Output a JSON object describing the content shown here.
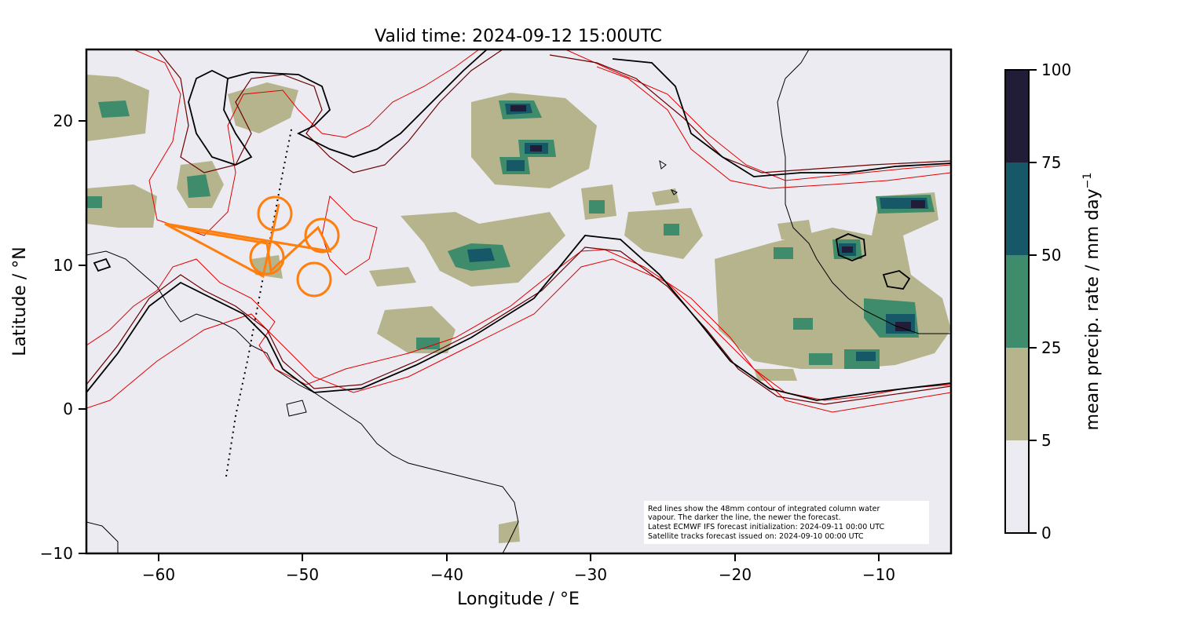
{
  "title": "Valid time: 2024-09-12 15:00UTC",
  "x_axis": {
    "label": "Longitude / °E",
    "ticks": [
      "−60",
      "−50",
      "−40",
      "−30",
      "−20",
      "−10"
    ]
  },
  "y_axis": {
    "label": "Latitude / °N",
    "ticks": [
      "20",
      "10",
      "0",
      "−10"
    ]
  },
  "colorbar": {
    "label": "mean precip. rate / mm day",
    "label_superscript": "−1",
    "ticks": [
      "100",
      "75",
      "50",
      "25",
      "5",
      "0"
    ],
    "levels": [
      0,
      5,
      25,
      50,
      75,
      100
    ],
    "colors": [
      "#ecebf2",
      "#b5b48c",
      "#3f8c6c",
      "#165868",
      "#211d38"
    ]
  },
  "note": [
    "Red lines show the 48mm contour of integrated column water",
    "vapour. The darker the line, the newer the forecast.",
    "Latest ECMWF IFS forecast initialization: 2024-09-11 00:00 UTC",
    "Satellite tracks forecast issued on: 2024-09-10 00:00 UTC"
  ],
  "colors": {
    "map_background": "#ecebf2",
    "contour_newest": "#000000",
    "contour_mid": "#6b0000",
    "contour_old": "#e00000",
    "flight_track": "#ff7f0e",
    "satellite_track": "#000000"
  },
  "chart_data": {
    "type": "map",
    "xlim": [
      -65,
      -5
    ],
    "ylim": [
      -10,
      25
    ],
    "grid": false
  }
}
